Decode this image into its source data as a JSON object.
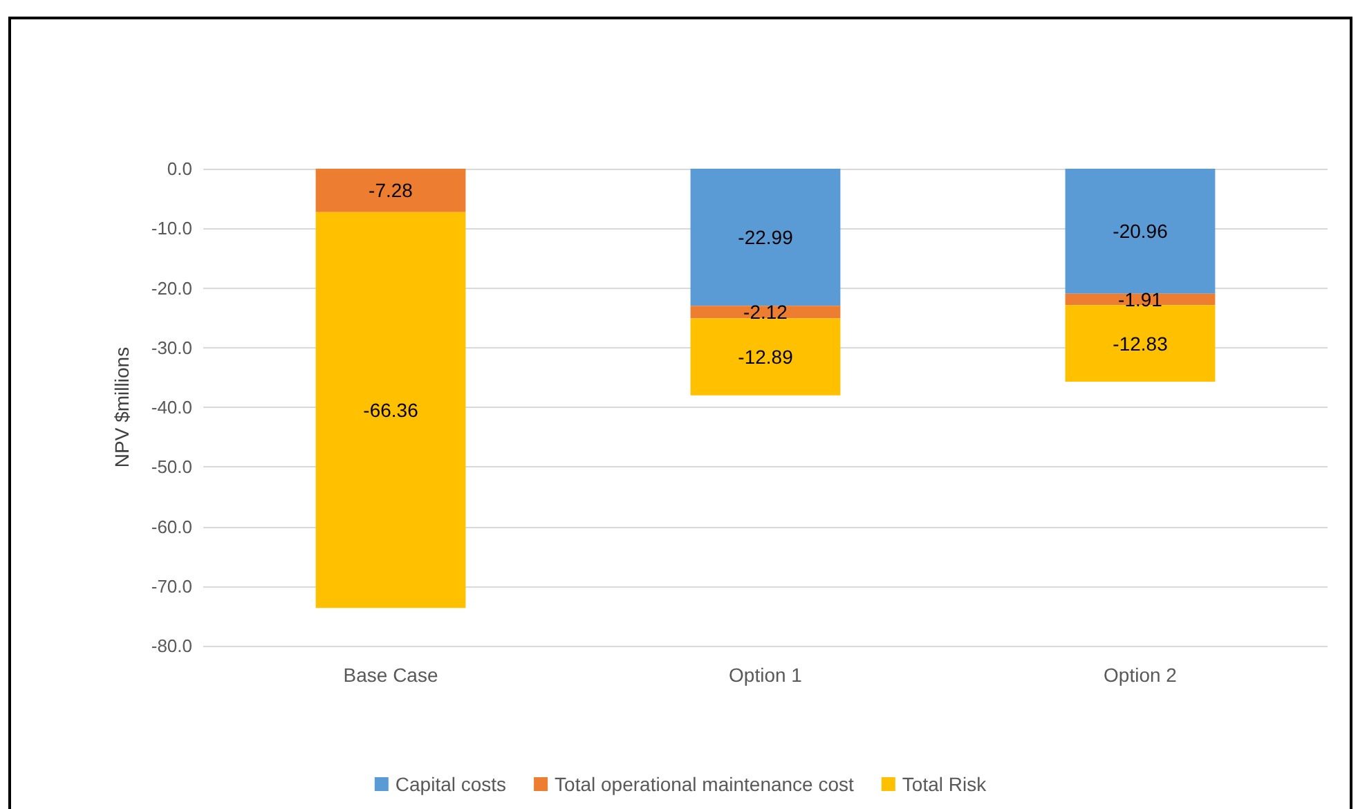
{
  "chart_data": {
    "type": "bar",
    "stacked": true,
    "ylabel": "NPV $millions",
    "categories": [
      "Base Case",
      "Option 1",
      "Option 2"
    ],
    "series": [
      {
        "name": "Capital costs",
        "color": "#5b9bd5",
        "values": [
          null,
          -22.99,
          -20.96
        ]
      },
      {
        "name": "Total operational maintenance cost",
        "color": "#ed7d31",
        "values": [
          -7.28,
          -2.12,
          -1.91
        ]
      },
      {
        "name": "Total Risk",
        "color": "#ffc000",
        "values": [
          -66.36,
          -12.89,
          -12.83
        ]
      }
    ],
    "ylim": [
      -80,
      0
    ],
    "yticks": [
      {
        "value": -80,
        "label": "-80.0"
      },
      {
        "value": -70,
        "label": "-70.0"
      },
      {
        "value": -60,
        "label": "-60.0"
      },
      {
        "value": -50,
        "label": "-50.0"
      },
      {
        "value": -40,
        "label": "-40.0"
      },
      {
        "value": -30,
        "label": "-30.0"
      },
      {
        "value": -20,
        "label": "-20.0"
      },
      {
        "value": -10,
        "label": "-10.0"
      },
      {
        "value": 0,
        "label": "0.0"
      }
    ],
    "grid": "y",
    "legend": "bottom",
    "data_labels": true
  }
}
